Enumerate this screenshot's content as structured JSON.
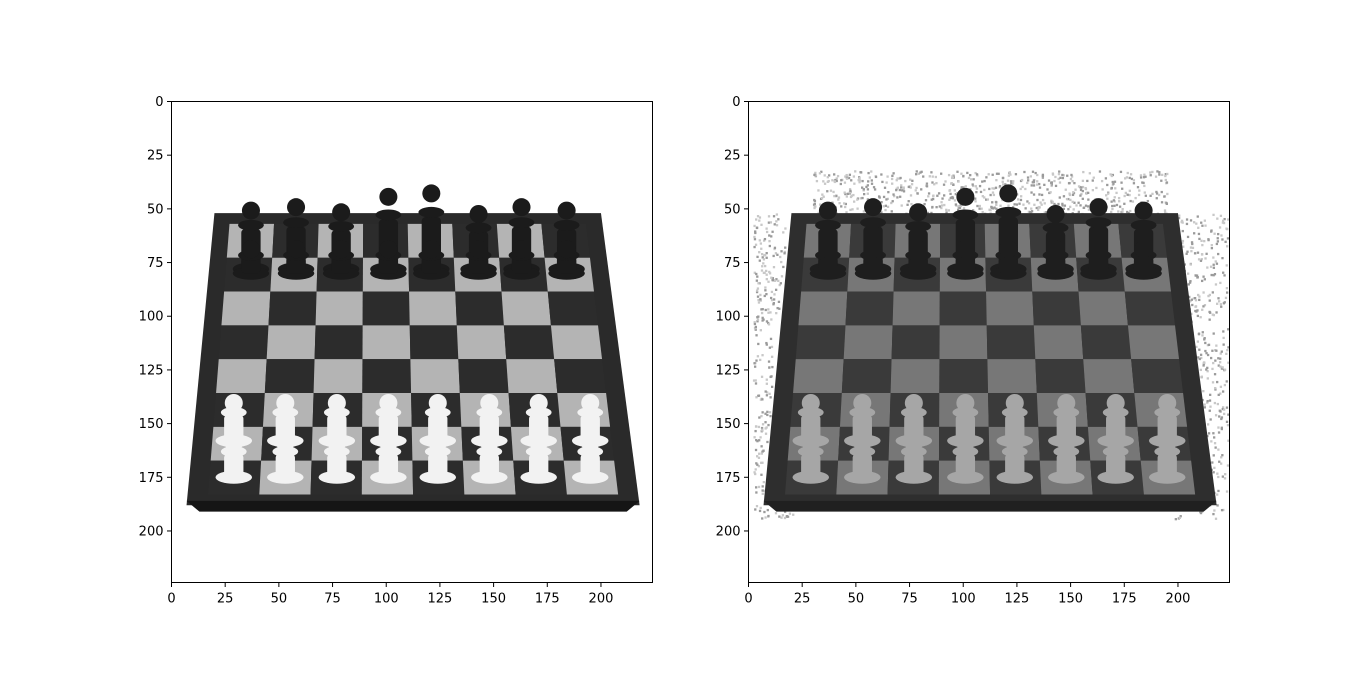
{
  "chart_data": [
    {
      "type": "image",
      "title": "",
      "xlabel": "",
      "ylabel": "",
      "xlim": [
        0,
        224
      ],
      "ylim": [
        224,
        0
      ],
      "xticks": [
        0,
        25,
        50,
        75,
        100,
        125,
        150,
        175,
        200
      ],
      "yticks": [
        0,
        25,
        50,
        75,
        100,
        125,
        150,
        175,
        200
      ],
      "content": "grayscale chessboard",
      "noise": false
    },
    {
      "type": "image",
      "title": "",
      "xlabel": "",
      "ylabel": "",
      "xlim": [
        0,
        224
      ],
      "ylim": [
        224,
        0
      ],
      "xticks": [
        0,
        25,
        50,
        75,
        100,
        125,
        150,
        175,
        200
      ],
      "yticks": [
        0,
        25,
        50,
        75,
        100,
        125,
        150,
        175,
        200
      ],
      "content": "processed grayscale chessboard",
      "noise": true
    }
  ]
}
